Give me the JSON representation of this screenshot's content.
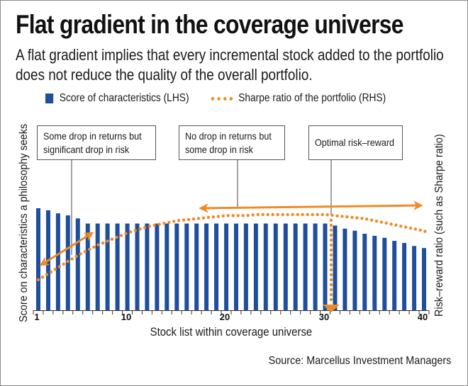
{
  "title": "Flat gradient in the coverage universe",
  "subtitle": "A flat gradient implies that every incremental stock added to the portfolio does not reduce the quality of the overall portfolio.",
  "legend": {
    "bar_label": "Score of characteristics (LHS)",
    "line_label": "Sharpe ratio of the portfolio (RHS)"
  },
  "axes": {
    "left_label": "Score on characteristics a philosophy seeks",
    "right_label": "Risk–reward ratio (such as Sharpe ratio)",
    "x_label": "Stock list within coverage universe",
    "x_ticks": [
      "1",
      "10",
      "20",
      "30",
      "40"
    ]
  },
  "callouts": [
    {
      "line1": "Some drop in returns but",
      "line2": "significant drop in risk"
    },
    {
      "line1": "No drop in returns but",
      "line2": "some drop in risk"
    },
    {
      "line1": "Optimal risk–reward",
      "line2": ""
    }
  ],
  "source": "Source: Marcellus Investment Managers",
  "colors": {
    "bar": "#1f4e9c",
    "line": "#f08a24",
    "text": "#1a1a1a",
    "border": "#8a8a8a"
  },
  "chart_data": {
    "type": "bar",
    "title": "Flat gradient in the coverage universe",
    "xlabel": "Stock list within coverage universe",
    "ylabel": "Score on characteristics a philosophy seeks",
    "ylabel_right": "Risk–reward ratio (such as Sharpe ratio)",
    "x": [
      1,
      2,
      3,
      4,
      5,
      6,
      7,
      8,
      9,
      10,
      11,
      12,
      13,
      14,
      15,
      16,
      17,
      18,
      19,
      20,
      21,
      22,
      23,
      24,
      25,
      26,
      27,
      28,
      29,
      30,
      31,
      32,
      33,
      34,
      35,
      36,
      37,
      38,
      39,
      40
    ],
    "series": [
      {
        "name": "Score of characteristics (LHS)",
        "type": "bar",
        "values": [
          100,
          98,
          95,
          93,
          90,
          85,
          85,
          85,
          85,
          85,
          85,
          85,
          85,
          85,
          85,
          85,
          85,
          85,
          85,
          85,
          85,
          85,
          85,
          85,
          85,
          85,
          85,
          85,
          85,
          85,
          83,
          80,
          78,
          75,
          73,
          71,
          68,
          66,
          63,
          61
        ]
      },
      {
        "name": "Sharpe ratio of the portfolio (RHS)",
        "type": "line-dotted",
        "values": [
          32,
          38,
          44,
          50,
          56,
          61,
          66,
          70,
          74,
          78,
          81,
          84,
          86,
          88,
          90,
          91,
          92,
          93,
          94,
          95,
          95,
          95,
          96,
          96,
          96,
          96,
          96,
          96,
          96,
          96,
          95,
          94,
          93,
          92,
          90,
          88,
          86,
          84,
          82,
          80
        ]
      }
    ],
    "annotations": [
      {
        "text": "Some drop in returns but significant drop in risk",
        "x_range": [
          1,
          6
        ],
        "type": "double-arrow"
      },
      {
        "text": "No drop in returns but some drop in risk",
        "x_range": [
          17,
          40
        ],
        "type": "double-arrow"
      },
      {
        "text": "Optimal risk–reward",
        "x": 31,
        "type": "vertical-dotted-arrow"
      }
    ],
    "x_ticks": [
      1,
      10,
      20,
      30,
      40
    ],
    "y_ticks": "none",
    "grid": false,
    "legend_position": "top"
  }
}
